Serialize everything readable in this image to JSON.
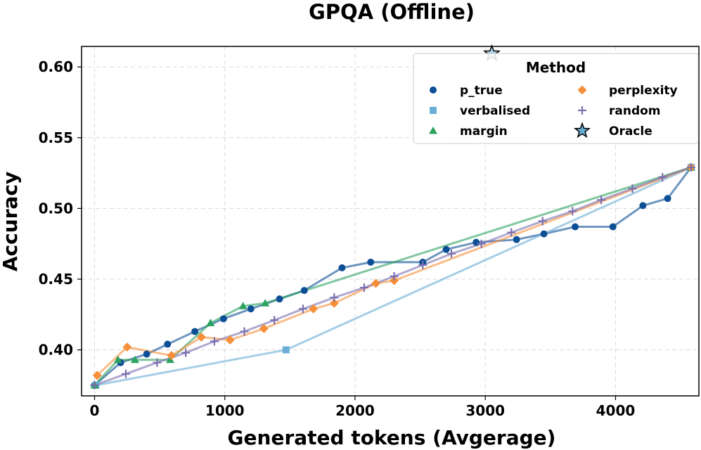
{
  "chart_data": {
    "type": "line",
    "title": "GPQA (Offline)",
    "xlabel": "Generated tokens (Avgerage)",
    "ylabel": "Accuracy",
    "xlim": [
      -100,
      4640
    ],
    "ylim": [
      0.3675,
      0.6145
    ],
    "xticks": [
      0,
      1000,
      2000,
      3000,
      4000
    ],
    "yticks": [
      0.4,
      0.45,
      0.5,
      0.55,
      0.6
    ],
    "xtick_labels": [
      "0",
      "1000",
      "2000",
      "3000",
      "4000"
    ],
    "ytick_labels": [
      "0.40",
      "0.45",
      "0.50",
      "0.55",
      "0.60"
    ],
    "grid": true,
    "legend_title": "Method",
    "legend_placement": "top-right",
    "series": [
      {
        "name": "p_true",
        "color": "#0d4f95",
        "marker": "circle",
        "line_alpha": 0.6,
        "x": [
          0,
          200,
          400,
          560,
          770,
          990,
          1200,
          1420,
          1610,
          1900,
          2120,
          2520,
          2700,
          2930,
          3240,
          3450,
          3690,
          3980,
          4210,
          4400,
          4580
        ],
        "y": [
          0.375,
          0.391,
          0.397,
          0.404,
          0.413,
          0.422,
          0.429,
          0.436,
          0.442,
          0.458,
          0.462,
          0.462,
          0.471,
          0.476,
          0.478,
          0.482,
          0.487,
          0.487,
          0.502,
          0.507,
          0.529
        ]
      },
      {
        "name": "verbalised",
        "color": "#6aaed6",
        "marker": "square",
        "line_alpha": 0.6,
        "x": [
          10,
          1470,
          4580
        ],
        "y": [
          0.375,
          0.4,
          0.529
        ]
      },
      {
        "name": "margin",
        "color": "#2ca25f",
        "marker": "triangle",
        "line_alpha": 0.6,
        "x": [
          0,
          180,
          310,
          580,
          890,
          1140,
          1310,
          4580
        ],
        "y": [
          0.375,
          0.393,
          0.393,
          0.393,
          0.419,
          0.431,
          0.433,
          0.529
        ]
      },
      {
        "name": "perplexity",
        "color": "#f58f3a",
        "marker": "diamond",
        "line_alpha": 0.6,
        "x": [
          20,
          250,
          590,
          820,
          1040,
          1300,
          1680,
          1840,
          2160,
          2300,
          4580
        ],
        "y": [
          0.382,
          0.402,
          0.396,
          0.409,
          0.407,
          0.415,
          0.429,
          0.433,
          0.447,
          0.449,
          0.529
        ]
      },
      {
        "name": "random",
        "color": "#7b6fb0",
        "marker": "plus",
        "line_alpha": 0.6,
        "x": [
          0,
          240,
          480,
          700,
          920,
          1150,
          1380,
          1600,
          1840,
          2070,
          2300,
          2520,
          2740,
          2970,
          3200,
          3440,
          3670,
          3890,
          4130,
          4360,
          4580
        ],
        "y": [
          0.375,
          0.383,
          0.391,
          0.398,
          0.406,
          0.413,
          0.421,
          0.429,
          0.437,
          0.444,
          0.452,
          0.46,
          0.468,
          0.475,
          0.483,
          0.491,
          0.498,
          0.506,
          0.514,
          0.522,
          0.529
        ]
      },
      {
        "name": "Oracle",
        "color": "#6aaed6",
        "marker": "star",
        "x": [
          3050
        ],
        "y": [
          0.6095
        ]
      }
    ]
  }
}
